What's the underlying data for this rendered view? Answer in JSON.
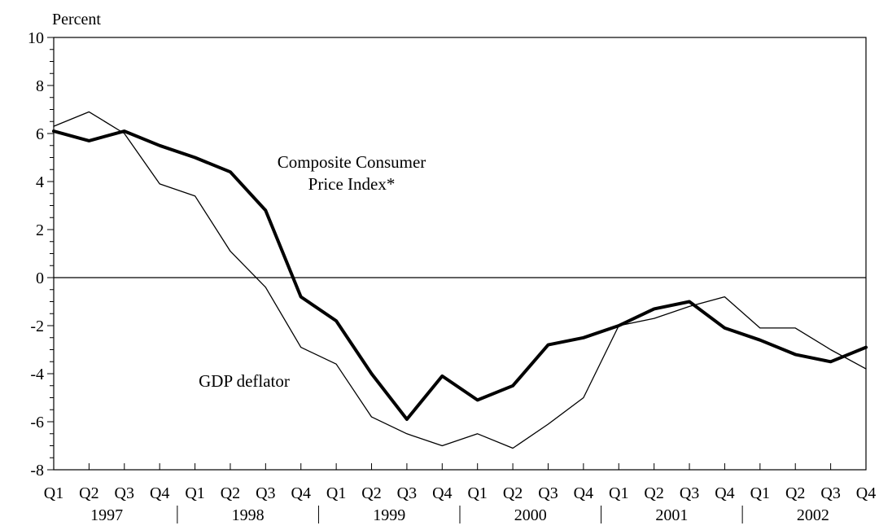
{
  "chart_data": {
    "type": "line",
    "ylabel": "Percent",
    "ylim": [
      -8,
      10
    ],
    "yticks": [
      -8,
      -6,
      -4,
      -2,
      0,
      2,
      4,
      6,
      8,
      10
    ],
    "categories": [
      "Q1",
      "Q2",
      "Q3",
      "Q4",
      "Q1",
      "Q2",
      "Q3",
      "Q4",
      "Q1",
      "Q2",
      "Q3",
      "Q4",
      "Q1",
      "Q2",
      "Q3",
      "Q4",
      "Q1",
      "Q2",
      "Q3",
      "Q4",
      "Q1",
      "Q2",
      "Q3",
      "Q4"
    ],
    "years": [
      "1997",
      "1998",
      "1999",
      "2000",
      "2001",
      "2002"
    ],
    "series": [
      {
        "name": "Composite Consumer Price Index*",
        "style": "thick",
        "color": "#000000",
        "values": [
          6.1,
          5.7,
          6.1,
          5.5,
          5.0,
          4.4,
          2.8,
          -0.8,
          -1.8,
          -4.0,
          -5.9,
          -4.1,
          -5.1,
          -4.5,
          -2.8,
          -2.5,
          -2.0,
          -1.3,
          -1.0,
          -2.1,
          -2.6,
          -3.2,
          -3.5,
          -2.9
        ]
      },
      {
        "name": "GDP deflator",
        "style": "thin",
        "color": "#000000",
        "values": [
          6.3,
          6.9,
          6.0,
          3.9,
          3.4,
          1.1,
          -0.4,
          -2.9,
          -3.6,
          -5.8,
          -6.5,
          -7.0,
          -6.5,
          -7.1,
          -6.1,
          -5.0,
          -2.0,
          -1.7,
          -1.2,
          -0.8,
          -2.1,
          -2.1,
          -3.0,
          -3.8
        ]
      }
    ],
    "annotations": {
      "cpi_line1": "Composite Consumer",
      "cpi_line2": "Price Index*",
      "gdp": "GDP deflator"
    }
  }
}
